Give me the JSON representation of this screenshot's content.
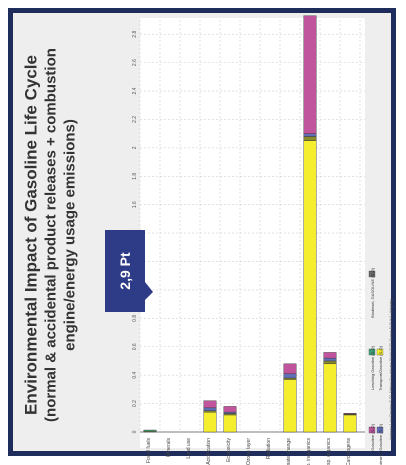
{
  "title": {
    "line1": "Environmental Impact of Gasoline Life Cycle",
    "line2": "(normal & accidental product releases + combustion",
    "line3": "engine/energy usage emissions)"
  },
  "callout": {
    "text": "2,9 Pt",
    "color": "#2e3b87"
  },
  "chart_data": {
    "type": "bar",
    "orientation": "horizontal",
    "stacked": true,
    "categories": [
      "Carcinogens",
      "Resp. organics",
      "Resp. inorganics",
      "Climate change",
      "Radiation",
      "Ozone layer",
      "Ecotoxicity",
      "Acidification",
      "Land use",
      "Minerals",
      "Fossil fuels"
    ],
    "series": [
      {
        "name": "Gasoline {S-O}",
        "color": "#f5ee2e",
        "values": [
          0.12,
          0.48,
          2.05,
          0.37,
          0,
          0,
          0.12,
          0.14,
          0,
          0,
          0.004
        ]
      },
      {
        "name": "Transport Gasoline {S-O}",
        "color": "#8a8a2a",
        "values": [
          0.005,
          0.02,
          0.03,
          0.01,
          0,
          0,
          0.01,
          0.01,
          0,
          0,
          0
        ]
      },
      {
        "name": "Undesired Gasoline {S-O}",
        "color": "#6070b8",
        "values": [
          0.002,
          0.02,
          0.02,
          0.03,
          0,
          0,
          0.01,
          0.02,
          0,
          0,
          0
        ]
      },
      {
        "name": "Analysing Input Gasoline {S-O}",
        "color": "#c0559e",
        "values": [
          0.005,
          0.04,
          0.83,
          0.07,
          0,
          0,
          0.04,
          0.05,
          0,
          0,
          0
        ]
      },
      {
        "name": "Leaching Gasoline {S-O}",
        "color": "#3ea07a",
        "values": [
          0,
          0,
          0,
          0,
          0,
          0,
          0,
          0,
          0,
          0,
          0.01
        ]
      }
    ],
    "axis_ticks": [
      "0",
      "0.2",
      "0.4",
      "0.6",
      "0.8",
      "1",
      "1.2",
      "1.4",
      "1.6",
      "1.8",
      "2",
      "2.2",
      "2.4",
      "2.6",
      "2.8"
    ],
    "axis_label": "Pt",
    "xlim": [
      0,
      2.9
    ],
    "grid": true,
    "legend": [
      {
        "name": "Gasoline {S-O}",
        "color": "#c0559e"
      },
      {
        "name": "Undesired Gasoline {S-O}",
        "color": "#6070b8"
      },
      {
        "name": "Leaching Gasoline {S-O}",
        "color": "#3ea07a"
      },
      {
        "name": "Transport/Gasoline {S-O}",
        "color": "#f5ee2e"
      },
      {
        "name": "Biodiesel, GASOLINE {S-O}",
        "color": "#6a6a6a"
      }
    ],
    "legend_position": "bottom",
    "footnote": "Analysing 1 p/o 'Gasoline {S-O}'; Method: Eco-indicator 99 (H) V2.05 / Europe EI 99 H/A / Weighting"
  }
}
